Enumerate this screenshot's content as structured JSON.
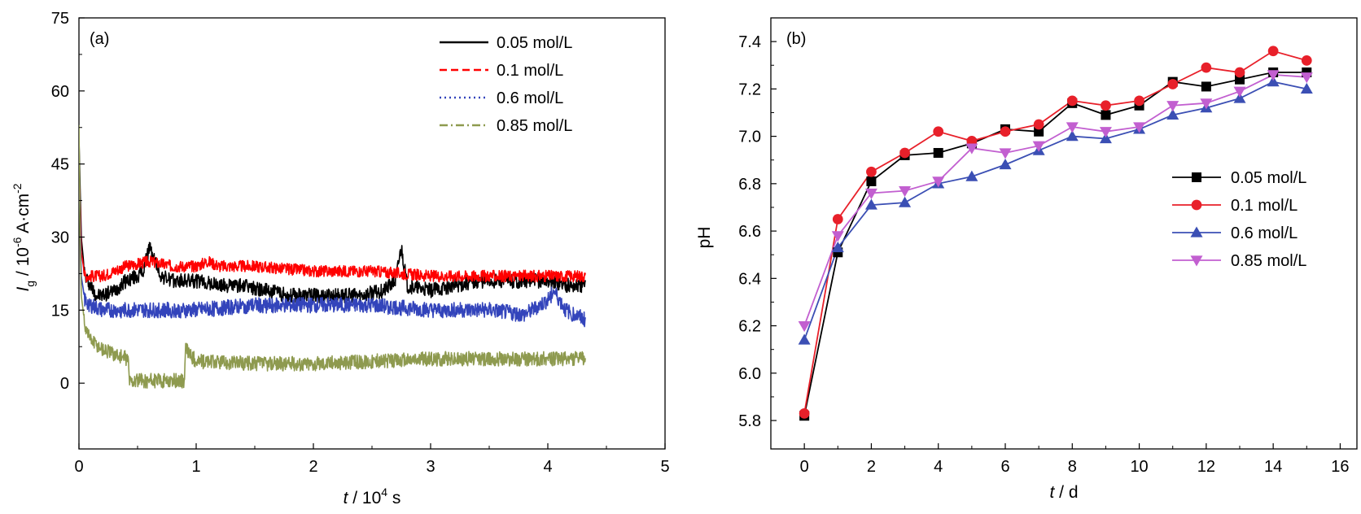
{
  "chart_data": [
    {
      "type": "line",
      "panel_label": "(a)",
      "xlabel": {
        "var": "t",
        "unit_prefix": " / 10",
        "unit_exp": "4",
        "unit_suffix": " s"
      },
      "ylabel": {
        "var": "I",
        "sub": "g",
        "unit_prefix": " / 10",
        "unit_exp": "-6",
        "unit_mid": " A·cm",
        "unit_exp2": "-2"
      },
      "xlim": [
        0,
        5
      ],
      "ylim": [
        -13.5,
        75
      ],
      "x_ticks": [
        "0",
        "1",
        "2",
        "3",
        "4",
        "5"
      ],
      "y_ticks": [
        "0",
        "15",
        "30",
        "45",
        "60",
        "75"
      ],
      "legend_position": "top-right",
      "series": [
        {
          "name": "0.05 mol/L",
          "color": "#000000",
          "line_style": "solid",
          "x": [
            0,
            0.02,
            0.05,
            0.1,
            0.15,
            0.2,
            0.3,
            0.4,
            0.5,
            0.55,
            0.6,
            0.7,
            0.8,
            1.0,
            1.2,
            1.4,
            1.6,
            1.8,
            2.0,
            2.2,
            2.4,
            2.6,
            2.7,
            2.75,
            2.8,
            3.0,
            3.2,
            3.4,
            3.6,
            3.8,
            4.0,
            4.2,
            4.32
          ],
          "y": [
            50,
            30,
            22,
            20,
            18,
            18,
            19,
            21,
            22,
            23,
            28,
            22,
            21,
            21,
            20,
            20,
            19,
            18,
            18,
            18,
            18,
            19,
            21,
            28,
            20,
            19,
            20,
            21,
            21,
            21,
            21,
            20,
            20
          ],
          "noise": 1.5
        },
        {
          "name": "0.1 mol/L",
          "color": "#ff0000",
          "line_style": "dashed",
          "x": [
            0,
            0.02,
            0.05,
            0.1,
            0.2,
            0.4,
            0.6,
            0.8,
            1.0,
            1.1,
            1.2,
            1.5,
            2.0,
            2.5,
            3.0,
            3.5,
            4.0,
            4.32
          ],
          "y": [
            45,
            27,
            22,
            22,
            22,
            24,
            25,
            24,
            24,
            25,
            24,
            24,
            23,
            23,
            22,
            22,
            22,
            22
          ],
          "noise": 1.2
        },
        {
          "name": "0.6 mol/L",
          "color": "#3344bb",
          "line_style": "dotted",
          "x": [
            0,
            0.02,
            0.05,
            0.1,
            0.2,
            0.5,
            1.0,
            1.5,
            2.0,
            2.5,
            3.0,
            3.5,
            3.8,
            4.0,
            4.05,
            4.15,
            4.32
          ],
          "y": [
            45,
            22,
            17,
            16,
            15,
            15,
            15,
            16,
            16,
            16,
            15,
            15,
            14,
            17,
            19,
            15,
            13
          ],
          "noise": 1.6
        },
        {
          "name": "0.85 mol/L",
          "color": "#8e9a4f",
          "line_style": "dash-dot",
          "x": [
            0,
            0.01,
            0.02,
            0.05,
            0.1,
            0.2,
            0.3,
            0.42,
            0.43,
            0.9,
            0.91,
            1.0,
            1.5,
            2.0,
            2.5,
            3.0,
            3.5,
            4.0,
            4.32
          ],
          "y": [
            53,
            30,
            18,
            12,
            9,
            7,
            6,
            5,
            0.5,
            0.5,
            7,
            4.5,
            4,
            4,
            4.5,
            5,
            5,
            5,
            5
          ],
          "noise": 1.5
        }
      ]
    },
    {
      "type": "line",
      "panel_label": "(b)",
      "xlabel": {
        "var": "t",
        "unit_prefix": " / d"
      },
      "ylabel": {
        "text": "pH"
      },
      "xlim": [
        -1,
        16.5
      ],
      "ylim": [
        5.68,
        7.5
      ],
      "x_ticks": [
        "0",
        "2",
        "4",
        "6",
        "8",
        "10",
        "12",
        "14",
        "16"
      ],
      "y_ticks": [
        "5.8",
        "6.0",
        "6.2",
        "6.4",
        "6.6",
        "6.8",
        "7.0",
        "7.2",
        "7.4"
      ],
      "legend_position": "right",
      "x": [
        0,
        1,
        2,
        3,
        4,
        5,
        6,
        7,
        8,
        9,
        10,
        11,
        12,
        13,
        14,
        15
      ],
      "series": [
        {
          "name": "0.05 mol/L",
          "color": "#000000",
          "marker": "square",
          "values": [
            5.82,
            6.51,
            6.81,
            6.92,
            6.93,
            6.97,
            7.03,
            7.02,
            7.14,
            7.09,
            7.13,
            7.23,
            7.21,
            7.24,
            7.27,
            7.27
          ]
        },
        {
          "name": "0.1 mol/L",
          "color": "#e8202a",
          "marker": "circle",
          "values": [
            5.83,
            6.65,
            6.85,
            6.93,
            7.02,
            6.98,
            7.02,
            7.05,
            7.15,
            7.13,
            7.15,
            7.22,
            7.29,
            7.27,
            7.36,
            7.32
          ]
        },
        {
          "name": "0.6 mol/L",
          "color": "#3b4fb4",
          "marker": "triangle-up",
          "values": [
            6.14,
            6.53,
            6.71,
            6.72,
            6.8,
            6.83,
            6.88,
            6.94,
            7.0,
            6.99,
            7.03,
            7.09,
            7.12,
            7.16,
            7.23,
            7.2
          ]
        },
        {
          "name": "0.85 mol/L",
          "color": "#c25fd0",
          "marker": "triangle-down",
          "values": [
            6.2,
            6.58,
            6.76,
            6.77,
            6.81,
            6.95,
            6.93,
            6.96,
            7.04,
            7.02,
            7.04,
            7.13,
            7.14,
            7.19,
            7.26,
            7.25
          ]
        }
      ]
    }
  ]
}
